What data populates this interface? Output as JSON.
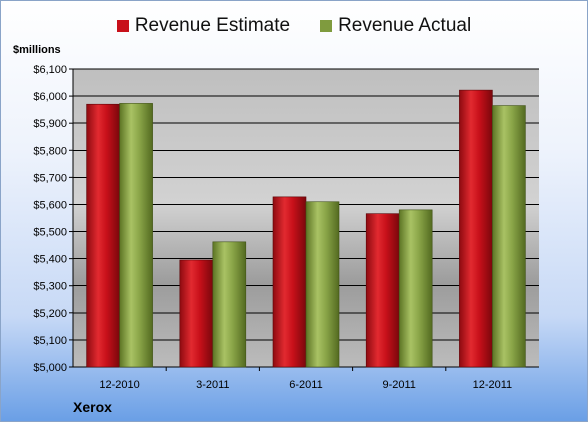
{
  "chart_data": {
    "type": "bar",
    "title": "",
    "xlabel": "",
    "ylabel": "$millions",
    "categories": [
      "12-2010",
      "3-2011",
      "6-2011",
      "9-2011",
      "12-2011"
    ],
    "series": [
      {
        "name": "Revenue Estimate",
        "values": [
          5970,
          5395,
          5628,
          5566,
          6022
        ],
        "color": "#c8101a"
      },
      {
        "name": "Revenue Actual",
        "values": [
          5973,
          5462,
          5610,
          5580,
          5965
        ],
        "color": "#7f9b3e"
      }
    ],
    "ylim": [
      5000,
      6100
    ],
    "yticks": [
      5000,
      5100,
      5200,
      5300,
      5400,
      5500,
      5600,
      5700,
      5800,
      5900,
      6000,
      6100
    ],
    "ytick_labels": [
      "$5,000",
      "$5,100",
      "$5,200",
      "$5,300",
      "$5,400",
      "$5,500",
      "$5,600",
      "$5,700",
      "$5,800",
      "$5,900",
      "$6,000",
      "$6,100"
    ],
    "grid": true,
    "legend_position": "top-center",
    "company": "Xerox"
  }
}
